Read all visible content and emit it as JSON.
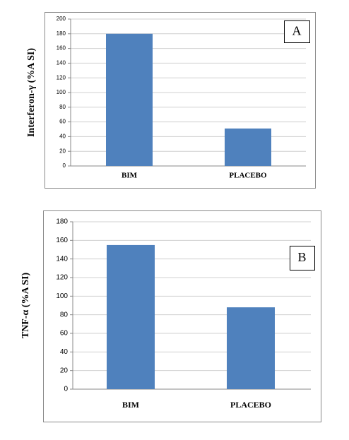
{
  "chart_data": [
    {
      "type": "bar",
      "panel_label": "A",
      "y_label": "Interferon-γ (%A SI)",
      "categories": [
        "BIM",
        "PLACEBO"
      ],
      "values": [
        180,
        51
      ],
      "color": "#4f81bd",
      "ylim": [
        0,
        200
      ],
      "yticks": [
        0,
        20,
        40,
        60,
        80,
        100,
        120,
        140,
        160,
        180,
        200
      ],
      "grid": true
    },
    {
      "type": "bar",
      "panel_label": "B",
      "y_label": "TNF-α (%A SI)",
      "categories": [
        "BIM",
        "PLACEBO"
      ],
      "values": [
        155,
        88
      ],
      "color": "#4f81bd",
      "ylim": [
        0,
        180
      ],
      "yticks": [
        0,
        20,
        40,
        60,
        80,
        100,
        120,
        140,
        160,
        180
      ],
      "grid": true
    }
  ]
}
